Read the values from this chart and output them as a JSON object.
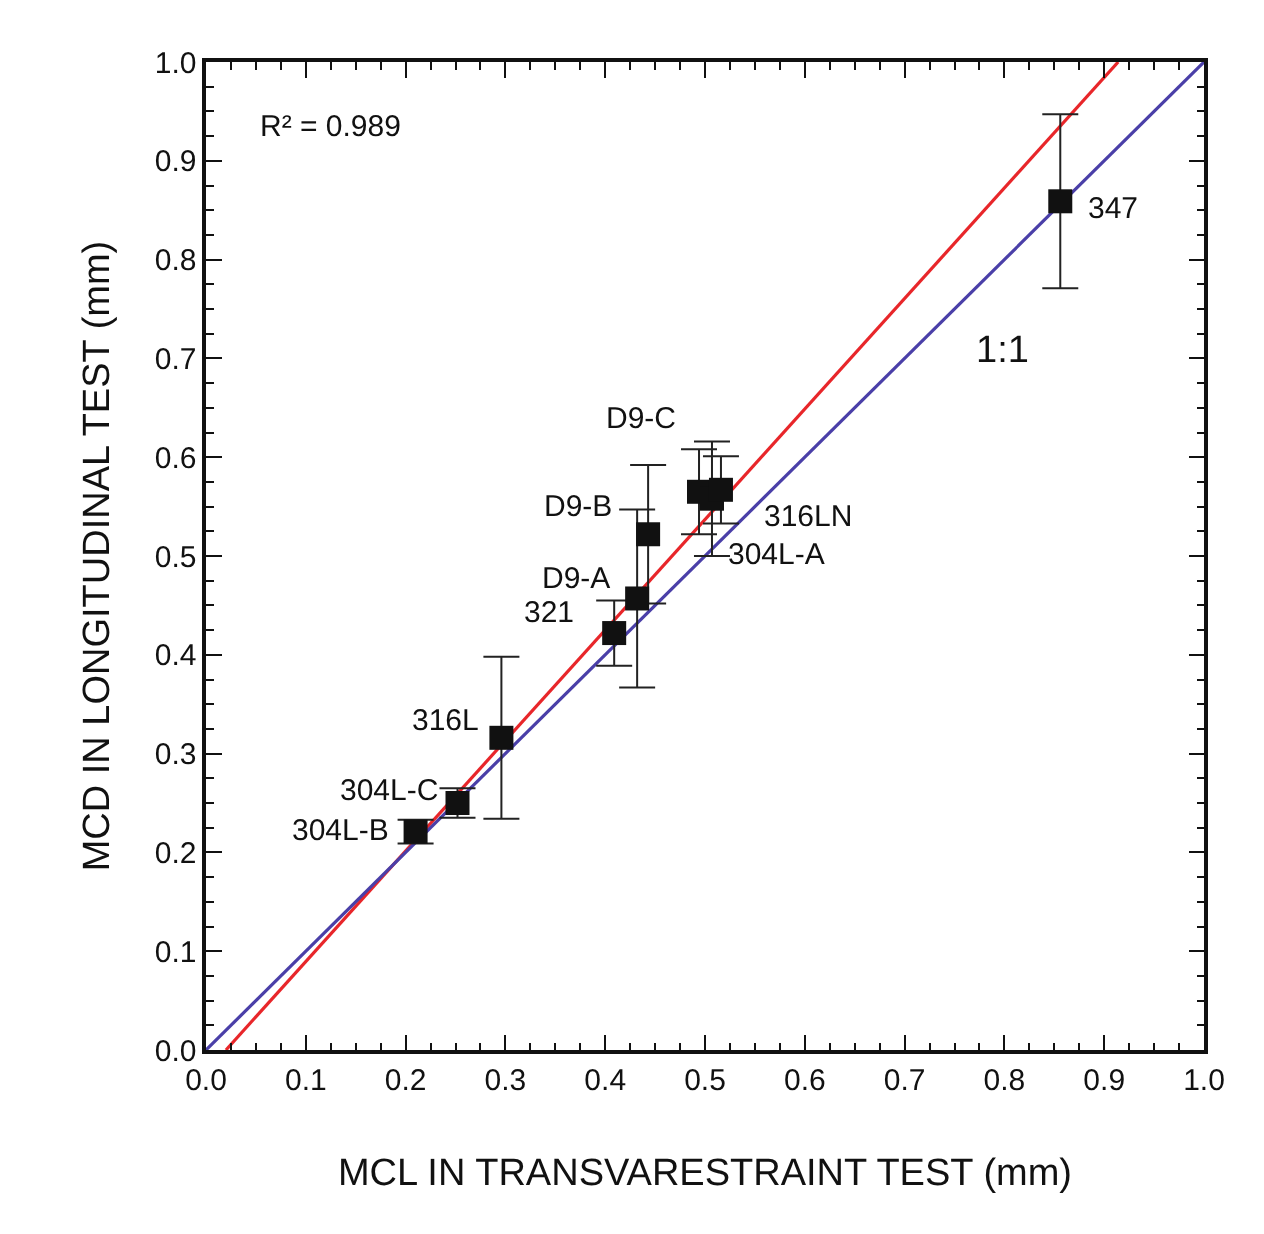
{
  "chart_data": {
    "type": "scatter",
    "xlabel": "MCL IN TRANSVARESTRAINT TEST (mm)",
    "ylabel": "MCD IN LONGITUDINAL TEST (mm)",
    "xlim": [
      0,
      1
    ],
    "ylim": [
      0,
      1
    ],
    "xticks": [
      {
        "value": 0,
        "label": "0.0"
      },
      {
        "value": 0.1,
        "label": "0.1"
      },
      {
        "value": 0.2,
        "label": "0.2"
      },
      {
        "value": 0.3,
        "label": "0.3"
      },
      {
        "value": 0.4,
        "label": "0.4"
      },
      {
        "value": 0.5,
        "label": "0.5"
      },
      {
        "value": 0.6,
        "label": "0.6"
      },
      {
        "value": 0.7,
        "label": "0.7"
      },
      {
        "value": 0.8,
        "label": "0.8"
      },
      {
        "value": 0.9,
        "label": "0.9"
      },
      {
        "value": 1,
        "label": "1.0"
      }
    ],
    "yticks": [
      {
        "value": 0,
        "label": "0.0"
      },
      {
        "value": 0.1,
        "label": "0.1"
      },
      {
        "value": 0.2,
        "label": "0.2"
      },
      {
        "value": 0.3,
        "label": "0.3"
      },
      {
        "value": 0.4,
        "label": "0.4"
      },
      {
        "value": 0.5,
        "label": "0.5"
      },
      {
        "value": 0.6,
        "label": "0.6"
      },
      {
        "value": 0.7,
        "label": "0.7"
      },
      {
        "value": 0.8,
        "label": "0.8"
      },
      {
        "value": 0.9,
        "label": "0.9"
      },
      {
        "value": 1,
        "label": "1.0"
      }
    ],
    "grid": false,
    "legend": false,
    "series": [
      {
        "type": "line",
        "color": "#e8262a",
        "x": [
          0.02,
          0.914
        ],
        "values": [
          0,
          1
        ]
      },
      {
        "type": "line",
        "name": "1:1",
        "color": "#4a3fa8",
        "x": [
          0,
          1
        ],
        "values": [
          0,
          1
        ]
      },
      {
        "marker": "square",
        "color": "#111111",
        "x": [
          0.21,
          0.252,
          0.296,
          0.409,
          0.432,
          0.443,
          0.494,
          0.507,
          0.516,
          0.856
        ],
        "values": [
          0.221,
          0.25,
          0.316,
          0.422,
          0.457,
          0.522,
          0.565,
          0.558,
          0.567,
          0.859
        ],
        "errors": [
          0.012,
          0.015,
          0.082,
          0.033,
          0.09,
          0.07,
          0.043,
          0.058,
          0.034,
          0.088
        ]
      }
    ],
    "annotations": [
      "R² = 0.989",
      {
        "text": "304L-B",
        "x": 0.21,
        "y": 0.221
      },
      {
        "text": "304L-C",
        "x": 0.252,
        "y": 0.25
      },
      {
        "text": "316L",
        "x": 0.296,
        "y": 0.316
      },
      {
        "text": "321",
        "x": 0.409,
        "y": 0.422
      },
      {
        "text": "D9-A",
        "x": 0.432,
        "y": 0.457
      },
      {
        "text": "D9-B",
        "x": 0.443,
        "y": 0.522
      },
      {
        "text": "D9-C",
        "x": 0.494,
        "y": 0.565
      },
      {
        "text": "304L-A",
        "x": 0.507,
        "y": 0.558
      },
      {
        "text": "316LN",
        "x": 0.516,
        "y": 0.567
      },
      {
        "text": "347",
        "x": 0.856,
        "y": 0.859
      }
    ]
  }
}
